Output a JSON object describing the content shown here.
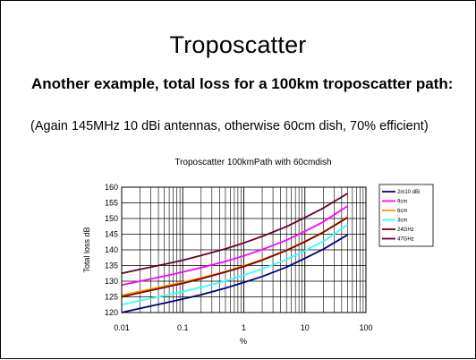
{
  "slide": {
    "title": "Troposcatter",
    "bullet1": "Another example, total loss for a 100km troposcatter path:",
    "bullet2": "(Again 145MHz 10 dBi antennas, otherwise 60cm dish, 70% efficient)"
  },
  "chart_data": {
    "type": "line",
    "title": "Troposcatter 100kmPath with 60cmdish",
    "xlabel": "%",
    "ylabel": "Total loss dB",
    "x_scale": "log",
    "xlim": [
      0.01,
      100
    ],
    "ylim": [
      120,
      160
    ],
    "x_ticks": [
      "0.01",
      "0.1",
      "1",
      "10",
      "100"
    ],
    "y_ticks": [
      "120",
      "125",
      "130",
      "135",
      "140",
      "145",
      "150",
      "155",
      "160"
    ],
    "grid": true,
    "legend_position": "right",
    "x": [
      0.01,
      0.02,
      0.05,
      0.1,
      0.2,
      0.5,
      1,
      2,
      5,
      10,
      20,
      50
    ],
    "series": [
      {
        "name": "2m10 dBi",
        "color": "#000080",
        "values": [
          120.0,
          121.3,
          123.0,
          124.3,
          125.7,
          127.8,
          129.6,
          131.5,
          134.5,
          137.3,
          140.2,
          144.8
        ]
      },
      {
        "name": "9cm",
        "color": "#ff00ff",
        "values": [
          128.8,
          130.0,
          131.6,
          132.9,
          134.3,
          136.3,
          138.1,
          140.1,
          143.1,
          145.9,
          148.9,
          154.0
        ]
      },
      {
        "name": "6cm",
        "color": "#ff9900",
        "values": [
          125.5,
          126.8,
          128.4,
          129.7,
          131.1,
          133.1,
          134.9,
          136.9,
          139.9,
          142.7,
          145.7,
          150.5
        ]
      },
      {
        "name": "3cm",
        "color": "#33ffff",
        "values": [
          122.5,
          123.8,
          125.4,
          126.7,
          128.1,
          130.1,
          131.9,
          133.9,
          136.9,
          139.7,
          142.7,
          148.0
        ]
      },
      {
        "name": "24GHz",
        "color": "#800000",
        "values": [
          125.0,
          126.3,
          128.0,
          129.3,
          130.8,
          132.9,
          134.7,
          136.7,
          139.8,
          142.6,
          145.6,
          150.3
        ]
      },
      {
        "name": "47GHz",
        "color": "#660033",
        "values": [
          132.5,
          133.8,
          135.4,
          136.7,
          138.2,
          140.3,
          142.2,
          144.3,
          147.4,
          150.3,
          153.3,
          158.0
        ]
      }
    ]
  }
}
